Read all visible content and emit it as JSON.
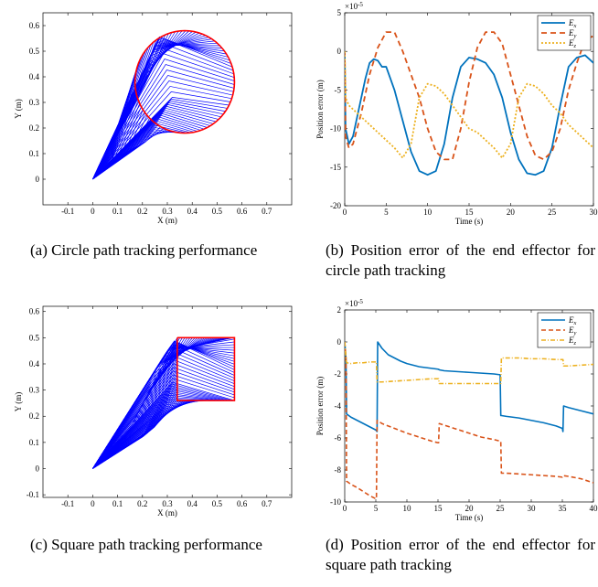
{
  "captions": {
    "a": "(a) Circle path tracking performance",
    "b": "(b) Position error of the end effector for circle path tracking",
    "c": "(c) Square path tracking performance",
    "d": "(d) Position error of the end effector for square path tracking"
  },
  "chart_data": [
    {
      "id": "a",
      "type": "line",
      "title": "",
      "xlabel": "X (m)",
      "ylabel": "Y (m)",
      "xlim": [
        -0.2,
        0.8
      ],
      "ylim": [
        -0.1,
        0.65
      ],
      "xticks": [
        -0.1,
        0,
        0.1,
        0.2,
        0.3,
        0.4,
        0.5,
        0.6,
        0.7
      ],
      "yticks": [
        0,
        0.1,
        0.2,
        0.3,
        0.4,
        0.5,
        0.6
      ],
      "path": {
        "shape": "circle",
        "center": [
          0.37,
          0.38
        ],
        "radius": 0.2,
        "color": "#ff0000"
      },
      "link_color": "#0000ff",
      "base": [
        0,
        0
      ],
      "elbow_path": [
        [
          0.07,
          0.12
        ],
        [
          0.21,
          0.37
        ],
        [
          0.24,
          0.5
        ],
        [
          0.27,
          0.56
        ],
        [
          0.32,
          0.32
        ],
        [
          0.27,
          0.24
        ],
        [
          0.22,
          0.15
        ],
        [
          0.08,
          0.08
        ]
      ],
      "n_links": 90
    },
    {
      "id": "b",
      "type": "line",
      "title": "",
      "xlabel": "Time (s)",
      "ylabel": "Position error (m)",
      "exponent_label": "×10",
      "exponent": "-5",
      "xlim": [
        0,
        30
      ],
      "ylim": [
        -20,
        5
      ],
      "xticks": [
        0,
        5,
        10,
        15,
        20,
        25,
        30
      ],
      "yticks": [
        -20,
        -15,
        -10,
        -5,
        0,
        5
      ],
      "legend_position": "top-right",
      "series": [
        {
          "name": "E",
          "sub": "x",
          "color": "#0072bd",
          "dash": "",
          "width": 1.8,
          "x": [
            0,
            0.1,
            0.5,
            1,
            2,
            2.5,
            3,
            3.5,
            4,
            4.5,
            5,
            5.5,
            6,
            6.5,
            7,
            8,
            9,
            10,
            11,
            12,
            13,
            14,
            15,
            16,
            17,
            18,
            19,
            20,
            21,
            22,
            23,
            24,
            25,
            26,
            27,
            28,
            29,
            30
          ],
          "y": [
            0,
            -10,
            -12,
            -11,
            -6,
            -3.5,
            -1.5,
            -1,
            -1.2,
            -2,
            -2,
            -3.5,
            -5,
            -7,
            -9,
            -13,
            -15.5,
            -16,
            -15.5,
            -12,
            -6,
            -2,
            -0.8,
            -1,
            -1.5,
            -3,
            -6,
            -10.5,
            -14,
            -15.8,
            -16,
            -15.5,
            -12.5,
            -7,
            -2,
            -0.8,
            -0.5,
            -1.5
          ]
        },
        {
          "name": "E",
          "sub": "y",
          "color": "#d95319",
          "dash": "6,4",
          "width": 1.8,
          "x": [
            0,
            0.1,
            0.5,
            1,
            2,
            3,
            4,
            5,
            6,
            7,
            8,
            9,
            10,
            11,
            12,
            13,
            14,
            15,
            16,
            17,
            18,
            19,
            20,
            21,
            22,
            23,
            24,
            25,
            26,
            27,
            28,
            29,
            30
          ],
          "y": [
            0,
            -11,
            -12.5,
            -12,
            -8,
            -3,
            0.5,
            2.5,
            2.5,
            0,
            -3,
            -6,
            -10,
            -13,
            -14,
            -14,
            -10,
            -4,
            0.5,
            2.5,
            2.5,
            1,
            -3,
            -7,
            -11,
            -13.5,
            -14,
            -13,
            -10,
            -5,
            -1.5,
            1.5,
            2
          ]
        },
        {
          "name": "E",
          "sub": "z",
          "color": "#edb120",
          "dash": "2,2",
          "width": 1.8,
          "x": [
            0,
            0.1,
            0.5,
            1,
            2,
            3,
            4,
            5,
            6,
            7,
            8,
            9,
            10,
            11,
            12,
            13,
            14,
            15,
            16,
            17,
            18,
            19,
            20,
            21,
            22,
            23,
            24,
            25,
            26,
            27,
            28,
            29,
            30
          ],
          "y": [
            0,
            -6,
            -7,
            -7.5,
            -8.5,
            -9.5,
            -10.5,
            -11.5,
            -12.5,
            -13.8,
            -12,
            -6,
            -4.2,
            -4.5,
            -5.5,
            -7,
            -8.5,
            -10,
            -10.5,
            -11.5,
            -12.5,
            -13.8,
            -12,
            -6,
            -4.2,
            -4.5,
            -5.5,
            -7,
            -8,
            -9.5,
            -10.5,
            -11.5,
            -12.5
          ]
        }
      ]
    },
    {
      "id": "c",
      "type": "line",
      "title": "",
      "xlabel": "X (m)",
      "ylabel": "Y (m)",
      "xlim": [
        -0.2,
        0.8
      ],
      "ylim": [
        -0.11,
        0.62
      ],
      "xticks": [
        -0.1,
        0,
        0.1,
        0.2,
        0.3,
        0.4,
        0.5,
        0.6,
        0.7
      ],
      "yticks": [
        -0.1,
        0,
        0.1,
        0.2,
        0.3,
        0.4,
        0.5,
        0.6
      ],
      "path": {
        "shape": "square",
        "corners": [
          [
            0.34,
            0.5
          ],
          [
            0.57,
            0.5
          ],
          [
            0.57,
            0.26
          ],
          [
            0.34,
            0.26
          ]
        ],
        "color": "#ff0000"
      },
      "link_color": "#0000ff",
      "base": [
        0,
        0
      ],
      "elbow_path": [
        [
          0.16,
          0.17
        ],
        [
          0.26,
          0.39
        ],
        [
          0.3,
          0.45
        ],
        [
          0.33,
          0.49
        ],
        [
          0.32,
          0.33
        ],
        [
          0.3,
          0.25
        ],
        [
          0.25,
          0.16
        ],
        [
          0.2,
          0.12
        ]
      ],
      "n_links": 90
    },
    {
      "id": "d",
      "type": "line",
      "title": "",
      "xlabel": "Time (s)",
      "ylabel": "Position error (m)",
      "exponent_label": "×10",
      "exponent": "-5",
      "xlim": [
        0,
        40
      ],
      "ylim": [
        -10,
        2
      ],
      "xticks": [
        0,
        5,
        10,
        15,
        20,
        25,
        30,
        35,
        40
      ],
      "yticks": [
        -10,
        -8,
        -6,
        -4,
        -2,
        0,
        2
      ],
      "legend_position": "top-right",
      "series": [
        {
          "name": "E",
          "sub": "x",
          "color": "#0072bd",
          "dash": "",
          "width": 1.6,
          "x": [
            0,
            0.2,
            0.3,
            1,
            2,
            3,
            4,
            5,
            5.2,
            5.3,
            6,
            7,
            8,
            9,
            10,
            11,
            12,
            13,
            14,
            15,
            15.3,
            16,
            18,
            20,
            22,
            24,
            25,
            25.1,
            25.2,
            26,
            28,
            30,
            32,
            34,
            35,
            35.1,
            35.2,
            36,
            38,
            40
          ],
          "y": [
            0,
            -1,
            -4.5,
            -4.7,
            -4.9,
            -5.1,
            -5.3,
            -5.5,
            -5.6,
            0,
            -0.4,
            -0.8,
            -1,
            -1.2,
            -1.35,
            -1.45,
            -1.55,
            -1.6,
            -1.65,
            -1.7,
            -1.75,
            -1.8,
            -1.85,
            -1.9,
            -1.95,
            -2,
            -2.05,
            -4.6,
            -4.6,
            -4.65,
            -4.75,
            -4.9,
            -5.05,
            -5.25,
            -5.4,
            -5.6,
            -4,
            -4.1,
            -4.3,
            -4.5
          ]
        },
        {
          "name": "E",
          "sub": "y",
          "color": "#d95319",
          "dash": "5,3",
          "width": 1.6,
          "x": [
            0,
            0.2,
            0.3,
            1,
            2,
            3,
            4,
            5,
            5.1,
            5.2,
            6,
            8,
            10,
            12,
            14,
            15,
            15.1,
            15.2,
            16,
            18,
            20,
            22,
            24,
            25,
            25.1,
            25.2,
            26,
            28,
            30,
            32,
            34,
            35,
            35.1,
            36,
            38,
            40
          ],
          "y": [
            0,
            -1,
            -8.7,
            -8.9,
            -9.1,
            -9.35,
            -9.6,
            -9.8,
            -9.8,
            -4.9,
            -5.1,
            -5.4,
            -5.7,
            -5.95,
            -6.2,
            -6.3,
            -6.3,
            -5.1,
            -5.2,
            -5.45,
            -5.7,
            -5.95,
            -6.1,
            -6.2,
            -6.2,
            -8.2,
            -8.2,
            -8.25,
            -8.3,
            -8.35,
            -8.4,
            -8.45,
            -8.35,
            -8.4,
            -8.55,
            -8.8
          ]
        },
        {
          "name": "E",
          "sub": "z",
          "color": "#edb120",
          "dash": "5,2,1,2",
          "width": 1.6,
          "x": [
            0,
            0.2,
            0.3,
            1,
            2,
            3,
            4,
            5,
            5.1,
            5.2,
            6,
            8,
            10,
            12,
            14,
            15,
            15.1,
            15.2,
            16,
            18,
            20,
            22,
            24,
            25,
            25.1,
            25.2,
            26,
            28,
            30,
            32,
            34,
            35,
            35.1,
            35.2,
            36,
            38,
            40
          ],
          "y": [
            0,
            -1,
            -1.3,
            -1.35,
            -1.3,
            -1.3,
            -1.25,
            -1.25,
            -1.25,
            -2.5,
            -2.5,
            -2.45,
            -2.4,
            -2.35,
            -2.3,
            -2.3,
            -2.3,
            -2.6,
            -2.6,
            -2.6,
            -2.6,
            -2.6,
            -2.6,
            -2.6,
            -2.6,
            -1,
            -1,
            -1,
            -1.05,
            -1.05,
            -1.1,
            -1.1,
            -1.1,
            -1.5,
            -1.5,
            -1.45,
            -1.4
          ]
        }
      ]
    }
  ]
}
